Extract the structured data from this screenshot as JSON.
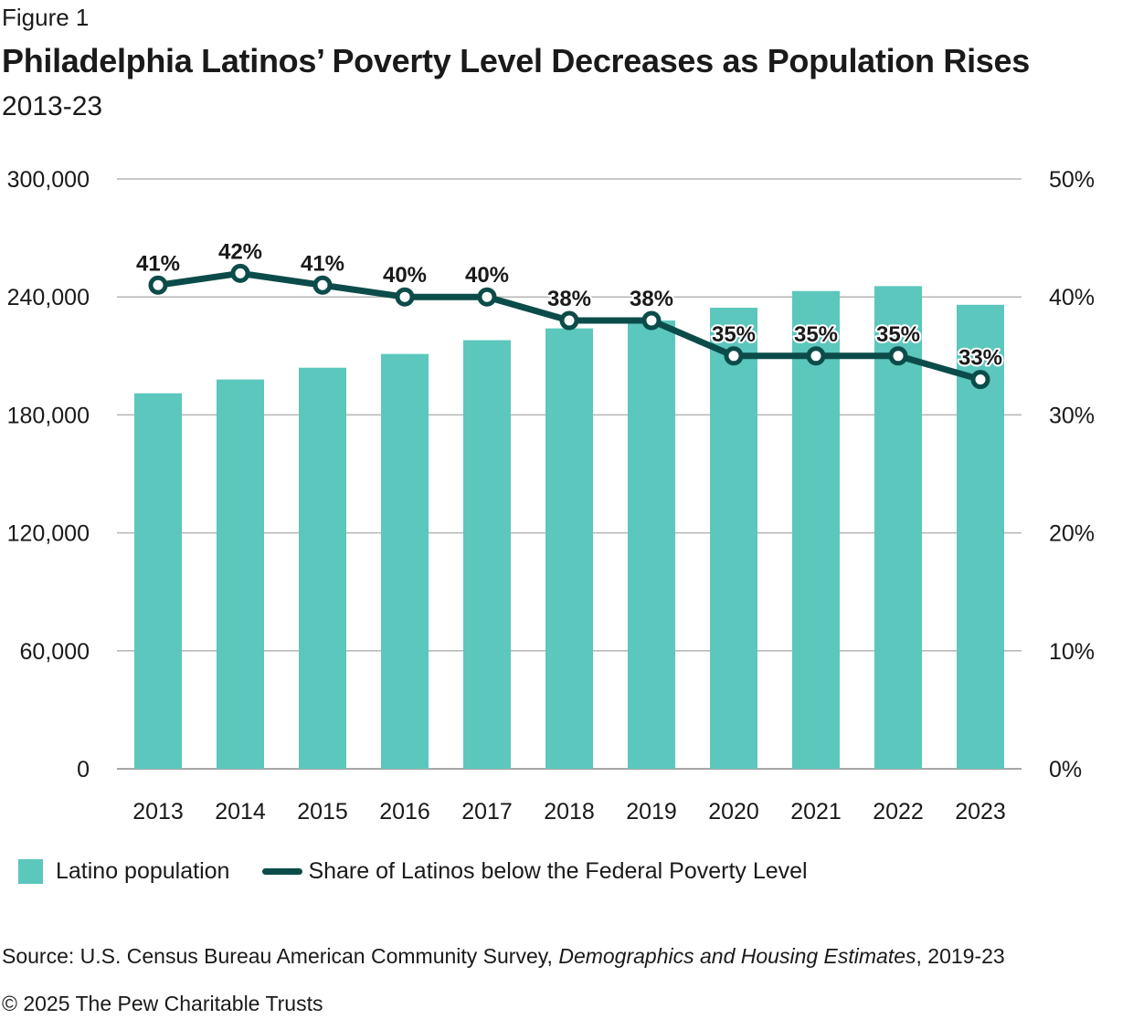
{
  "header": {
    "figure_label": "Figure 1",
    "title": "Philadelphia Latinos’ Poverty Level Decreases as Population Rises",
    "subtitle": "2013-23"
  },
  "legend": {
    "bar_label": "Latino population",
    "line_label": "Share of Latinos below the Federal Poverty Level"
  },
  "footer": {
    "source_prefix": "Source: U.S. Census Bureau American Community Survey, ",
    "source_italic": "Demographics and Housing Estimates",
    "source_suffix": ", 2019-23",
    "copyright": "© 2025 The Pew Charitable Trusts"
  },
  "colors": {
    "bar": "#5bc7bd",
    "line": "#0b4c4a",
    "grid": "#b5b5b5"
  },
  "chart_data": {
    "type": "bar",
    "title": "Philadelphia Latinos’ Poverty Level Decreases as Population Rises",
    "subtitle": "2013-23",
    "categories": [
      "2013",
      "2014",
      "2015",
      "2016",
      "2017",
      "2018",
      "2019",
      "2020",
      "2021",
      "2022",
      "2023"
    ],
    "series": [
      {
        "name": "Latino population",
        "type": "bar",
        "axis": "left",
        "values": [
          191000,
          198000,
          204000,
          211000,
          218000,
          224000,
          228000,
          234500,
          243000,
          245500,
          236000
        ]
      },
      {
        "name": "Share of Latinos below the Federal Poverty Level",
        "type": "line",
        "axis": "right",
        "values": [
          41,
          42,
          41,
          40,
          40,
          38,
          38,
          35,
          35,
          35,
          33
        ],
        "data_labels": [
          "41%",
          "42%",
          "41%",
          "40%",
          "40%",
          "38%",
          "38%",
          "35%",
          "35%",
          "35%",
          "33%"
        ]
      }
    ],
    "y_left": {
      "min": 0,
      "max": 300000,
      "ticks": [
        "0",
        "60,000",
        "120,000",
        "180,000",
        "240,000",
        "300,000"
      ]
    },
    "y_right": {
      "min": 0,
      "max": 50,
      "ticks": [
        "0%",
        "10%",
        "20%",
        "30%",
        "40%",
        "50%"
      ]
    },
    "grid": true,
    "legend_position": "bottom-left"
  }
}
